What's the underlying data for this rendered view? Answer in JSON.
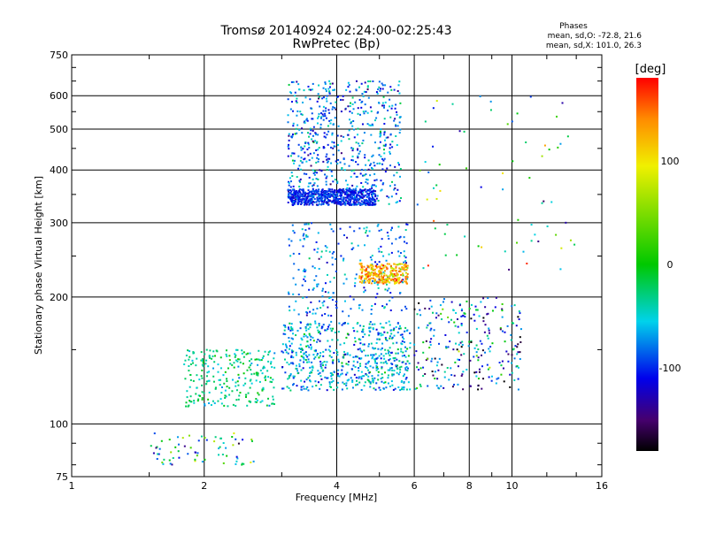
{
  "header": {
    "title_line1": "Tromsø 20140924 02:24:00-02:25:43",
    "title_line2": "RwPretec (Bp)"
  },
  "phases_box": {
    "heading": "Phases",
    "line1": "mean, sd,O: -72.8, 21.6",
    "line2": "mean, sd,X: 101.0, 26.3"
  },
  "colorbar": {
    "label": "[deg]",
    "ticks": [
      {
        "value": 100,
        "label": "100"
      },
      {
        "value": 0,
        "label": "0"
      },
      {
        "value": -100,
        "label": "-100"
      }
    ],
    "range": [
      -180,
      180
    ]
  },
  "chart_data": {
    "type": "scatter",
    "title": "Tromsø 20140924 02:24:00-02:25:43",
    "subtitle": "RwPretec (Bp)",
    "xlabel": "Frequency [MHz]",
    "ylabel": "Stationary phase Virtual Height [km]",
    "xscale": "log",
    "yscale": "log",
    "xlim": [
      1,
      16
    ],
    "ylim": [
      75,
      750
    ],
    "x_ticks": [
      {
        "value": 1,
        "label": "1"
      },
      {
        "value": 2,
        "label": "2"
      },
      {
        "value": 4,
        "label": "4"
      },
      {
        "value": 6,
        "label": "6"
      },
      {
        "value": 8,
        "label": "8"
      },
      {
        "value": 10,
        "label": "10"
      },
      {
        "value": 16,
        "label": "16"
      }
    ],
    "y_ticks": [
      {
        "value": 75,
        "label": "75"
      },
      {
        "value": 100,
        "label": "100"
      },
      {
        "value": 200,
        "label": "200"
      },
      {
        "value": 300,
        "label": "300"
      },
      {
        "value": 400,
        "label": "400"
      },
      {
        "value": 500,
        "label": "500"
      },
      {
        "value": 600,
        "label": "600"
      },
      {
        "value": 750,
        "label": "750"
      }
    ],
    "grid": true,
    "colorbar": "phase [deg], rainbow from -180 (black) to +180 (red)",
    "clusters": [
      {
        "name": "F2 trace O",
        "x_range": [
          3.1,
          5.6
        ],
        "y_range": [
          330,
          650
        ],
        "phase_mean": -80,
        "phase_sd": 30,
        "density": "high"
      },
      {
        "name": "F2 dense lower band",
        "x_range": [
          3.1,
          4.9
        ],
        "y_range": [
          330,
          360
        ],
        "phase_mean": -100,
        "phase_sd": 15,
        "density": "high"
      },
      {
        "name": "F1 layer",
        "x_range": [
          3.1,
          5.8
        ],
        "y_range": [
          180,
          300
        ],
        "phase_mean": -75,
        "phase_sd": 25,
        "density": "medium"
      },
      {
        "name": "F1 X trace",
        "x_range": [
          4.5,
          5.8
        ],
        "y_range": [
          215,
          240
        ],
        "phase_mean": 120,
        "phase_sd": 30,
        "density": "medium"
      },
      {
        "name": "E region",
        "x_range": [
          3.0,
          5.9
        ],
        "y_range": [
          120,
          175
        ],
        "phase_mean": -60,
        "phase_sd": 30,
        "density": "high"
      },
      {
        "name": "Es layer",
        "x_range": [
          1.8,
          2.9
        ],
        "y_range": [
          110,
          150
        ],
        "phase_mean": -30,
        "phase_sd": 20,
        "density": "medium"
      },
      {
        "name": "low E",
        "x_range": [
          1.5,
          2.6
        ],
        "y_range": [
          80,
          95
        ],
        "phase_mean": -40,
        "phase_sd": 60,
        "density": "low"
      },
      {
        "name": "mid frequency cluster",
        "x_range": [
          6.0,
          10.5
        ],
        "y_range": [
          120,
          200
        ],
        "phase_mean": -80,
        "phase_sd": 60,
        "density": "medium"
      },
      {
        "name": "scattered high",
        "x_range": [
          6.0,
          14.0
        ],
        "y_range": [
          230,
          600
        ],
        "phase_mean": 0,
        "phase_sd": 90,
        "density": "low"
      }
    ]
  }
}
